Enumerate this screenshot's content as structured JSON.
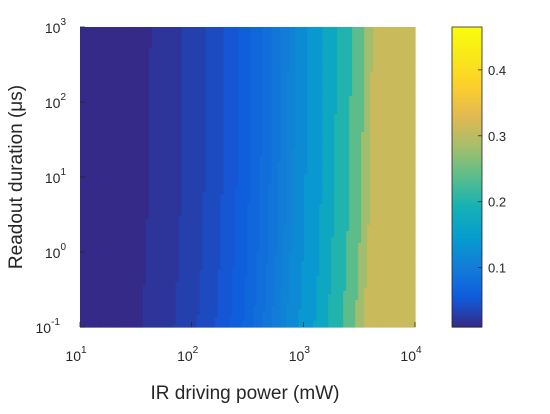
{
  "chart_data": {
    "type": "heatmap",
    "title": "",
    "xlabel": "IR driving power (mW)",
    "ylabel": "Readout duration (μs)",
    "x_scale": "log",
    "y_scale": "log",
    "xlim": [
      10,
      10000
    ],
    "ylim": [
      0.1,
      1000
    ],
    "x_ticks": [
      {
        "base": "10",
        "exp": "1",
        "value": 10
      },
      {
        "base": "10",
        "exp": "2",
        "value": 100
      },
      {
        "base": "10",
        "exp": "3",
        "value": 1000
      },
      {
        "base": "10",
        "exp": "4",
        "value": 10000
      }
    ],
    "y_ticks": [
      {
        "base": "10",
        "exp": "-1",
        "value": 0.1
      },
      {
        "base": "10",
        "exp": "0",
        "value": 1
      },
      {
        "base": "10",
        "exp": "1",
        "value": 10
      },
      {
        "base": "10",
        "exp": "2",
        "value": 100
      },
      {
        "base": "10",
        "exp": "3",
        "value": 1000
      }
    ],
    "colorbar": {
      "colormap": "parula",
      "range": [
        0.01,
        0.465
      ],
      "ticks": [
        "0.1",
        "0.2",
        "0.3",
        "0.4"
      ],
      "tick_values": [
        0.1,
        0.2,
        0.3,
        0.4
      ]
    },
    "levels": [
      0.01,
      0.02,
      0.03,
      0.04,
      0.05,
      0.06,
      0.07,
      0.08,
      0.09,
      0.1,
      0.11,
      0.12,
      0.14,
      0.17,
      0.2,
      0.24,
      0.28,
      0.31
    ],
    "value_model": {
      "description_units": "z = min(v, 0.32)",
      "a": 0.0083,
      "b": 0.6,
      "c": 0.13,
      "d": 0.3,
      "x_ref": 10,
      "y_ref": 0.1
    }
  }
}
